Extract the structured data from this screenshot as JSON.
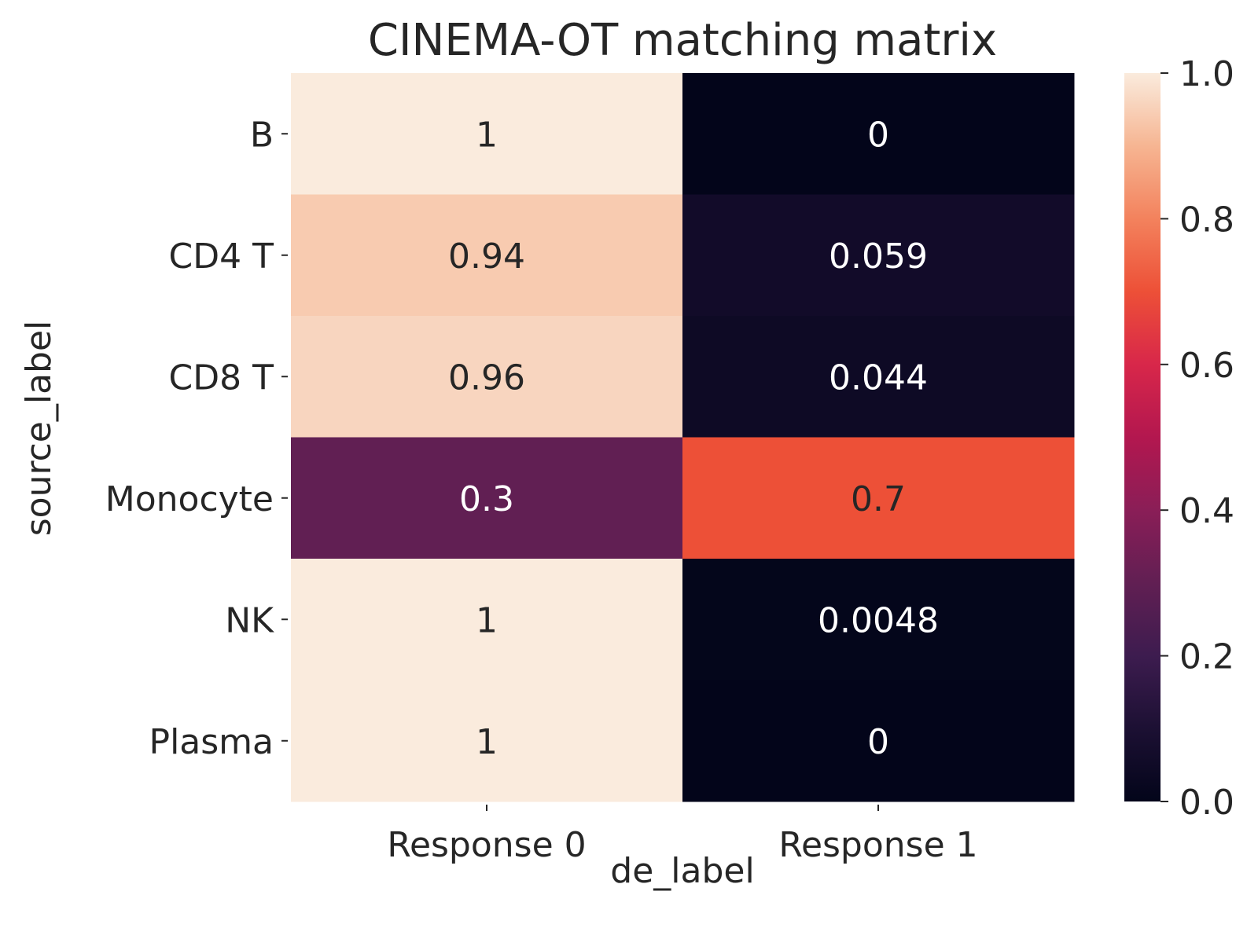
{
  "chart_data": {
    "type": "heatmap",
    "title": "CINEMA-OT matching matrix",
    "xlabel": "de_label",
    "ylabel": "source_label",
    "x_categories": [
      "Response 0",
      "Response 1"
    ],
    "y_categories": [
      "B",
      "CD4 T",
      "CD8 T",
      "Monocyte",
      "NK",
      "Plasma"
    ],
    "values": [
      [
        1,
        0
      ],
      [
        0.94,
        0.059
      ],
      [
        0.96,
        0.044
      ],
      [
        0.3,
        0.7
      ],
      [
        1,
        0.0048
      ],
      [
        1,
        0
      ]
    ],
    "annotations": [
      [
        "1",
        "0"
      ],
      [
        "0.94",
        "0.059"
      ],
      [
        "0.96",
        "0.044"
      ],
      [
        "0.3",
        "0.7"
      ],
      [
        "1",
        "0.0048"
      ],
      [
        "1",
        "0"
      ]
    ],
    "colormap": "rocket",
    "vmin": 0,
    "vmax": 1,
    "colorbar_ticks": [
      0.0,
      0.2,
      0.4,
      0.6,
      0.8,
      1.0
    ],
    "colorbar_tick_labels": [
      "0.0",
      "0.2",
      "0.4",
      "0.6",
      "0.8",
      "1.0"
    ]
  }
}
